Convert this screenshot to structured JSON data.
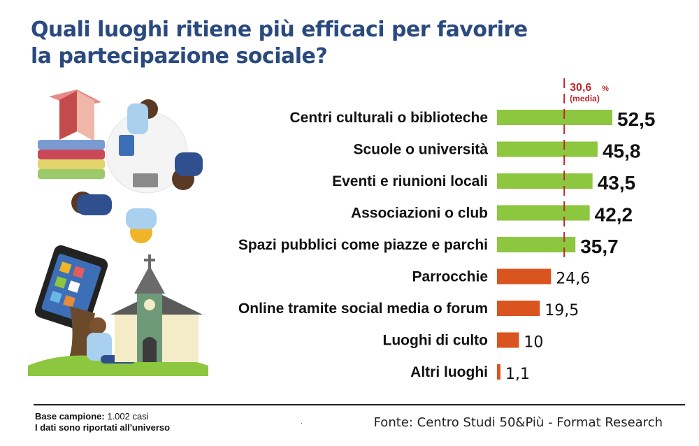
{
  "title": {
    "line1": "Quali luoghi ritiene più efficaci per favorire",
    "line2": "la partecipazione sociale?"
  },
  "average": {
    "value_label": "30,6",
    "unit": "%",
    "label": "(media)"
  },
  "footer": {
    "base_label": "Base campione:",
    "base_value": "1.002 casi",
    "note_bold": "I dati sono riportati",
    "note_rest": "all'universo",
    "source": "Fonte: Centro Studi 50&Più - Format Research",
    "dot": "."
  },
  "colors": {
    "title": "#2a4a7f",
    "above_average": "#8dc63f",
    "below_average": "#d9541e",
    "average_line": "#c0272d"
  },
  "chart_data": {
    "type": "bar",
    "orientation": "horizontal",
    "title": "Quali luoghi ritiene più efficaci per favorire la partecipazione sociale?",
    "unit": "%",
    "average": 30.6,
    "categories": [
      "Centri culturali o biblioteche",
      "Scuole o università",
      "Eventi e riunioni locali",
      "Associazioni o club",
      "Spazi pubblici come piazze e parchi",
      "Parrocchie",
      "Online tramite social media o forum",
      "Luoghi di culto",
      "Altri luoghi"
    ],
    "values": [
      52.5,
      45.8,
      43.5,
      42.2,
      35.7,
      24.6,
      19.5,
      10,
      1.1
    ],
    "value_labels": [
      "52,5",
      "45,8",
      "43,5",
      "42,2",
      "35,7",
      "24,6",
      "19,5",
      "10",
      "1,1"
    ],
    "xlim": [
      0,
      52.5
    ],
    "legend": "none",
    "grid": false
  }
}
